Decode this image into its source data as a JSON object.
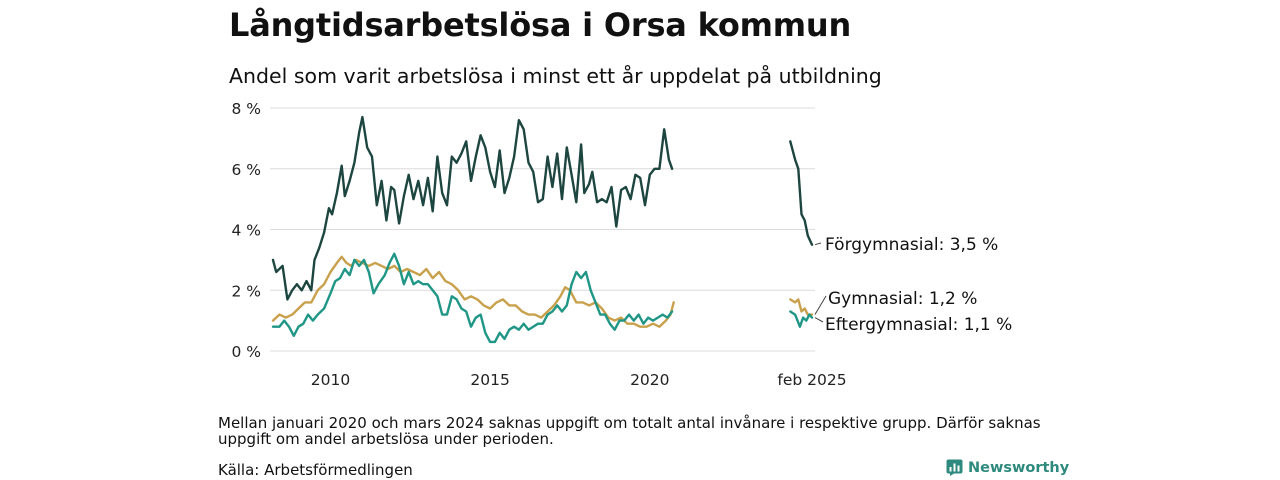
{
  "header": {
    "title": "Långtidsarbetslösa i Orsa kommun",
    "subtitle": "Andel som varit arbetslösa i minst ett år uppdelat på utbildning"
  },
  "footer": {
    "note": "Mellan januari 2020 och mars 2024 saknas uppgift om totalt antal invånare i respektive grupp. Därför saknas uppgift om andel arbetslösa under perioden.",
    "source": "Källa: Arbetsförmedlingen",
    "brand": "Newsworthy"
  },
  "colors": {
    "forgymnasial": "#1e4640",
    "gymnasial": "#c9a04b",
    "eftergymnasial": "#1f9686",
    "grid": "#dcdcdc",
    "brand": "#2e8a7e"
  },
  "chart_data": {
    "type": "line",
    "x_unit": "year",
    "xlim": [
      2008.2,
      2025.5
    ],
    "ylim": [
      0,
      8
    ],
    "y_ticks": [
      0,
      2,
      4,
      6,
      8
    ],
    "y_tick_labels": [
      "0 %",
      "2 %",
      "4 %",
      "6 %",
      "8 %"
    ],
    "x_ticks": [
      2010,
      2015,
      2020,
      2025.08
    ],
    "x_tick_labels": [
      "2010",
      "2015",
      "2020",
      "feb 2025"
    ],
    "grid": true,
    "gap": [
      2020.9,
      2024.2
    ],
    "series": [
      {
        "key": "forgymnasial",
        "end_label": "Förgymnasial: 3,5 %",
        "segments": [
          [
            [
              2008.2,
              3.0
            ],
            [
              2008.3,
              2.6
            ],
            [
              2008.5,
              2.8
            ],
            [
              2008.65,
              1.7
            ],
            [
              2008.8,
              2.0
            ],
            [
              2008.95,
              2.2
            ],
            [
              2009.1,
              2.0
            ],
            [
              2009.25,
              2.3
            ],
            [
              2009.4,
              2.0
            ],
            [
              2009.5,
              3.0
            ],
            [
              2009.65,
              3.4
            ],
            [
              2009.8,
              3.9
            ],
            [
              2009.95,
              4.7
            ],
            [
              2010.05,
              4.5
            ],
            [
              2010.2,
              5.2
            ],
            [
              2010.35,
              6.1
            ],
            [
              2010.45,
              5.1
            ],
            [
              2010.6,
              5.6
            ],
            [
              2010.75,
              6.2
            ],
            [
              2010.9,
              7.2
            ],
            [
              2011.0,
              7.7
            ],
            [
              2011.15,
              6.7
            ],
            [
              2011.3,
              6.4
            ],
            [
              2011.45,
              4.8
            ],
            [
              2011.6,
              5.6
            ],
            [
              2011.75,
              4.3
            ],
            [
              2011.9,
              5.4
            ],
            [
              2012.0,
              5.3
            ],
            [
              2012.15,
              4.2
            ],
            [
              2012.3,
              5.1
            ],
            [
              2012.45,
              5.8
            ],
            [
              2012.6,
              5.0
            ],
            [
              2012.75,
              5.6
            ],
            [
              2012.9,
              4.8
            ],
            [
              2013.05,
              5.7
            ],
            [
              2013.2,
              4.6
            ],
            [
              2013.35,
              6.4
            ],
            [
              2013.5,
              5.2
            ],
            [
              2013.65,
              4.8
            ],
            [
              2013.8,
              6.4
            ],
            [
              2013.95,
              6.2
            ],
            [
              2014.1,
              6.5
            ],
            [
              2014.25,
              6.9
            ],
            [
              2014.4,
              5.6
            ],
            [
              2014.55,
              6.4
            ],
            [
              2014.7,
              7.1
            ],
            [
              2014.85,
              6.7
            ],
            [
              2015.0,
              5.9
            ],
            [
              2015.15,
              5.4
            ],
            [
              2015.3,
              6.6
            ],
            [
              2015.45,
              5.2
            ],
            [
              2015.6,
              5.7
            ],
            [
              2015.75,
              6.4
            ],
            [
              2015.9,
              7.6
            ],
            [
              2016.05,
              7.3
            ],
            [
              2016.2,
              6.2
            ],
            [
              2016.35,
              5.9
            ],
            [
              2016.5,
              4.9
            ],
            [
              2016.65,
              5.0
            ],
            [
              2016.8,
              6.4
            ],
            [
              2016.95,
              5.4
            ],
            [
              2017.1,
              6.5
            ],
            [
              2017.25,
              5.0
            ],
            [
              2017.4,
              6.7
            ],
            [
              2017.55,
              5.8
            ],
            [
              2017.7,
              4.9
            ],
            [
              2017.85,
              6.8
            ],
            [
              2017.95,
              5.2
            ],
            [
              2018.1,
              5.5
            ],
            [
              2018.2,
              5.9
            ],
            [
              2018.35,
              4.9
            ],
            [
              2018.5,
              5.0
            ],
            [
              2018.65,
              4.9
            ],
            [
              2018.8,
              5.4
            ],
            [
              2018.95,
              4.1
            ],
            [
              2019.1,
              5.3
            ],
            [
              2019.25,
              5.4
            ],
            [
              2019.4,
              5.0
            ],
            [
              2019.55,
              5.8
            ],
            [
              2019.7,
              5.7
            ],
            [
              2019.85,
              4.8
            ],
            [
              2020.0,
              5.8
            ],
            [
              2020.15,
              6.0
            ],
            [
              2020.3,
              6.0
            ],
            [
              2020.45,
              7.3
            ],
            [
              2020.6,
              6.3
            ],
            [
              2020.7,
              6.0
            ]
          ],
          [
            [
              2024.4,
              6.9
            ],
            [
              2024.55,
              6.3
            ],
            [
              2024.65,
              6.0
            ],
            [
              2024.75,
              4.5
            ],
            [
              2024.85,
              4.3
            ],
            [
              2024.95,
              3.8
            ],
            [
              2025.08,
              3.5
            ]
          ]
        ]
      },
      {
        "key": "gymnasial",
        "end_label": "Gymnasial: 1,2 %",
        "segments": [
          [
            [
              2008.2,
              1.0
            ],
            [
              2008.4,
              1.2
            ],
            [
              2008.6,
              1.1
            ],
            [
              2008.8,
              1.2
            ],
            [
              2009.0,
              1.4
            ],
            [
              2009.2,
              1.6
            ],
            [
              2009.4,
              1.6
            ],
            [
              2009.6,
              2.0
            ],
            [
              2009.8,
              2.2
            ],
            [
              2010.0,
              2.6
            ],
            [
              2010.2,
              2.9
            ],
            [
              2010.35,
              3.1
            ],
            [
              2010.5,
              2.9
            ],
            [
              2010.65,
              2.8
            ],
            [
              2010.8,
              3.0
            ],
            [
              2011.0,
              2.9
            ],
            [
              2011.2,
              2.8
            ],
            [
              2011.4,
              2.9
            ],
            [
              2011.6,
              2.8
            ],
            [
              2011.8,
              2.7
            ],
            [
              2012.0,
              2.8
            ],
            [
              2012.2,
              2.6
            ],
            [
              2012.4,
              2.7
            ],
            [
              2012.6,
              2.6
            ],
            [
              2012.8,
              2.5
            ],
            [
              2013.0,
              2.7
            ],
            [
              2013.2,
              2.4
            ],
            [
              2013.4,
              2.6
            ],
            [
              2013.6,
              2.3
            ],
            [
              2013.8,
              2.2
            ],
            [
              2014.0,
              2.0
            ],
            [
              2014.2,
              1.7
            ],
            [
              2014.4,
              1.8
            ],
            [
              2014.6,
              1.7
            ],
            [
              2014.8,
              1.5
            ],
            [
              2015.0,
              1.4
            ],
            [
              2015.2,
              1.6
            ],
            [
              2015.4,
              1.7
            ],
            [
              2015.6,
              1.5
            ],
            [
              2015.8,
              1.5
            ],
            [
              2016.0,
              1.3
            ],
            [
              2016.2,
              1.2
            ],
            [
              2016.4,
              1.2
            ],
            [
              2016.6,
              1.1
            ],
            [
              2016.8,
              1.3
            ],
            [
              2017.0,
              1.5
            ],
            [
              2017.2,
              1.8
            ],
            [
              2017.35,
              2.1
            ],
            [
              2017.5,
              2.0
            ],
            [
              2017.7,
              1.6
            ],
            [
              2017.9,
              1.6
            ],
            [
              2018.1,
              1.5
            ],
            [
              2018.3,
              1.6
            ],
            [
              2018.5,
              1.4
            ],
            [
              2018.7,
              1.1
            ],
            [
              2018.9,
              1.0
            ],
            [
              2019.1,
              1.1
            ],
            [
              2019.3,
              0.9
            ],
            [
              2019.5,
              0.9
            ],
            [
              2019.7,
              0.8
            ],
            [
              2019.9,
              0.8
            ],
            [
              2020.1,
              0.9
            ],
            [
              2020.3,
              0.8
            ],
            [
              2020.5,
              1.0
            ],
            [
              2020.65,
              1.2
            ],
            [
              2020.75,
              1.6
            ]
          ],
          [
            [
              2024.4,
              1.7
            ],
            [
              2024.55,
              1.6
            ],
            [
              2024.65,
              1.7
            ],
            [
              2024.75,
              1.3
            ],
            [
              2024.85,
              1.4
            ],
            [
              2024.95,
              1.2
            ],
            [
              2025.08,
              1.2
            ]
          ]
        ]
      },
      {
        "key": "eftergymnasial",
        "end_label": "Eftergymnasial: 1,1 %",
        "segments": [
          [
            [
              2008.2,
              0.8
            ],
            [
              2008.4,
              0.8
            ],
            [
              2008.55,
              1.0
            ],
            [
              2008.7,
              0.8
            ],
            [
              2008.85,
              0.5
            ],
            [
              2009.0,
              0.8
            ],
            [
              2009.15,
              0.9
            ],
            [
              2009.3,
              1.2
            ],
            [
              2009.45,
              1.0
            ],
            [
              2009.6,
              1.2
            ],
            [
              2009.8,
              1.4
            ],
            [
              2010.0,
              1.9
            ],
            [
              2010.15,
              2.3
            ],
            [
              2010.3,
              2.4
            ],
            [
              2010.45,
              2.7
            ],
            [
              2010.6,
              2.5
            ],
            [
              2010.75,
              3.0
            ],
            [
              2010.9,
              2.8
            ],
            [
              2011.05,
              3.0
            ],
            [
              2011.2,
              2.6
            ],
            [
              2011.35,
              1.9
            ],
            [
              2011.5,
              2.2
            ],
            [
              2011.7,
              2.5
            ],
            [
              2011.85,
              2.9
            ],
            [
              2012.0,
              3.2
            ],
            [
              2012.15,
              2.8
            ],
            [
              2012.3,
              2.2
            ],
            [
              2012.45,
              2.6
            ],
            [
              2012.6,
              2.2
            ],
            [
              2012.75,
              2.3
            ],
            [
              2012.9,
              2.2
            ],
            [
              2013.05,
              2.2
            ],
            [
              2013.2,
              2.0
            ],
            [
              2013.35,
              1.8
            ],
            [
              2013.5,
              1.2
            ],
            [
              2013.65,
              1.2
            ],
            [
              2013.8,
              1.8
            ],
            [
              2013.95,
              1.7
            ],
            [
              2014.1,
              1.4
            ],
            [
              2014.25,
              1.3
            ],
            [
              2014.4,
              0.8
            ],
            [
              2014.55,
              1.1
            ],
            [
              2014.7,
              1.2
            ],
            [
              2014.85,
              0.6
            ],
            [
              2015.0,
              0.3
            ],
            [
              2015.15,
              0.3
            ],
            [
              2015.3,
              0.6
            ],
            [
              2015.45,
              0.4
            ],
            [
              2015.6,
              0.7
            ],
            [
              2015.75,
              0.8
            ],
            [
              2015.9,
              0.7
            ],
            [
              2016.05,
              0.9
            ],
            [
              2016.2,
              0.7
            ],
            [
              2016.35,
              0.8
            ],
            [
              2016.5,
              0.9
            ],
            [
              2016.65,
              0.9
            ],
            [
              2016.8,
              1.2
            ],
            [
              2016.95,
              1.3
            ],
            [
              2017.1,
              1.5
            ],
            [
              2017.25,
              1.3
            ],
            [
              2017.4,
              1.5
            ],
            [
              2017.55,
              2.2
            ],
            [
              2017.7,
              2.6
            ],
            [
              2017.85,
              2.4
            ],
            [
              2018.0,
              2.6
            ],
            [
              2018.15,
              2.0
            ],
            [
              2018.3,
              1.6
            ],
            [
              2018.45,
              1.2
            ],
            [
              2018.6,
              1.2
            ],
            [
              2018.75,
              0.9
            ],
            [
              2018.9,
              0.7
            ],
            [
              2019.05,
              1.0
            ],
            [
              2019.2,
              1.0
            ],
            [
              2019.35,
              1.2
            ],
            [
              2019.5,
              1.0
            ],
            [
              2019.65,
              1.2
            ],
            [
              2019.8,
              0.9
            ],
            [
              2019.95,
              1.1
            ],
            [
              2020.1,
              1.0
            ],
            [
              2020.25,
              1.1
            ],
            [
              2020.4,
              1.2
            ],
            [
              2020.55,
              1.1
            ],
            [
              2020.7,
              1.3
            ]
          ],
          [
            [
              2024.4,
              1.3
            ],
            [
              2024.55,
              1.2
            ],
            [
              2024.7,
              0.8
            ],
            [
              2024.8,
              1.1
            ],
            [
              2024.9,
              1.0
            ],
            [
              2025.0,
              1.2
            ],
            [
              2025.08,
              1.1
            ]
          ]
        ]
      }
    ]
  }
}
